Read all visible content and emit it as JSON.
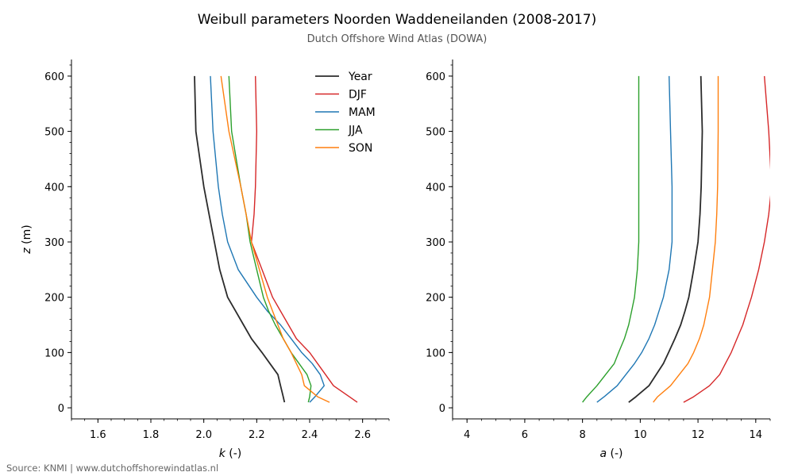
{
  "title": "Weibull parameters Noorden Waddeneilanden (2008-2017)",
  "subtitle": "Dutch Offshore Wind Atlas (DOWA)",
  "source": "Source: KNMI | www.dutchoffshorewindatlas.nl",
  "colors": {
    "Year": "#2b2b2b",
    "DJF": "#d62728",
    "MAM": "#1f77b4",
    "JJA": "#2ca02c",
    "SON": "#ff7f0e"
  },
  "chart_data": [
    {
      "type": "line",
      "xlabel_var": "k",
      "xlabel_unit": " (-)",
      "ylabel_var": "z",
      "ylabel_unit": " (m)",
      "xlim": [
        1.5,
        2.7
      ],
      "ylim": [
        -20,
        630
      ],
      "xticks": [
        1.6,
        1.8,
        2.0,
        2.2,
        2.4,
        2.6
      ],
      "xtick_labels": [
        "1.6",
        "1.8",
        "2.0",
        "2.2",
        "2.4",
        "2.6"
      ],
      "yticks": [
        0,
        100,
        200,
        300,
        400,
        500,
        600
      ],
      "ytick_labels": [
        "0",
        "100",
        "200",
        "300",
        "400",
        "500",
        "600"
      ],
      "legend_position": "top-right",
      "series": [
        {
          "name": "Year",
          "points": [
            [
              2.305,
              10
            ],
            [
              2.3,
              20
            ],
            [
              2.29,
              40
            ],
            [
              2.28,
              60
            ],
            [
              2.25,
              80
            ],
            [
              2.22,
              100
            ],
            [
              2.18,
              125
            ],
            [
              2.15,
              150
            ],
            [
              2.12,
              175
            ],
            [
              2.09,
              200
            ],
            [
              2.06,
              250
            ],
            [
              2.04,
              300
            ],
            [
              2.02,
              350
            ],
            [
              2.0,
              400
            ],
            [
              1.97,
              500
            ],
            [
              1.965,
              600
            ]
          ]
        },
        {
          "name": "DJF",
          "points": [
            [
              2.58,
              10
            ],
            [
              2.55,
              20
            ],
            [
              2.49,
              40
            ],
            [
              2.46,
              60
            ],
            [
              2.43,
              80
            ],
            [
              2.4,
              100
            ],
            [
              2.35,
              125
            ],
            [
              2.32,
              150
            ],
            [
              2.29,
              175
            ],
            [
              2.26,
              200
            ],
            [
              2.22,
              250
            ],
            [
              2.18,
              300
            ],
            [
              2.19,
              350
            ],
            [
              2.195,
              400
            ],
            [
              2.2,
              500
            ],
            [
              2.195,
              600
            ]
          ]
        },
        {
          "name": "MAM",
          "points": [
            [
              2.4,
              10
            ],
            [
              2.42,
              20
            ],
            [
              2.455,
              40
            ],
            [
              2.44,
              60
            ],
            [
              2.41,
              80
            ],
            [
              2.37,
              100
            ],
            [
              2.33,
              125
            ],
            [
              2.29,
              150
            ],
            [
              2.24,
              175
            ],
            [
              2.2,
              200
            ],
            [
              2.13,
              250
            ],
            [
              2.09,
              300
            ],
            [
              2.07,
              350
            ],
            [
              2.055,
              400
            ],
            [
              2.035,
              500
            ],
            [
              2.025,
              600
            ]
          ]
        },
        {
          "name": "JJA",
          "points": [
            [
              2.395,
              10
            ],
            [
              2.4,
              20
            ],
            [
              2.405,
              40
            ],
            [
              2.39,
              60
            ],
            [
              2.36,
              80
            ],
            [
              2.33,
              100
            ],
            [
              2.3,
              125
            ],
            [
              2.27,
              150
            ],
            [
              2.245,
              175
            ],
            [
              2.225,
              200
            ],
            [
              2.2,
              250
            ],
            [
              2.175,
              300
            ],
            [
              2.16,
              350
            ],
            [
              2.14,
              400
            ],
            [
              2.105,
              500
            ],
            [
              2.095,
              600
            ]
          ]
        },
        {
          "name": "SON",
          "points": [
            [
              2.475,
              10
            ],
            [
              2.43,
              20
            ],
            [
              2.38,
              40
            ],
            [
              2.37,
              60
            ],
            [
              2.35,
              80
            ],
            [
              2.33,
              100
            ],
            [
              2.3,
              125
            ],
            [
              2.28,
              150
            ],
            [
              2.26,
              175
            ],
            [
              2.24,
              200
            ],
            [
              2.21,
              250
            ],
            [
              2.18,
              300
            ],
            [
              2.16,
              350
            ],
            [
              2.14,
              400
            ],
            [
              2.095,
              500
            ],
            [
              2.065,
              600
            ]
          ]
        }
      ]
    },
    {
      "type": "line",
      "xlabel_var": "a",
      "xlabel_unit": " (-)",
      "ylabel_var": "",
      "ylabel_unit": "",
      "xlim": [
        3.5,
        14.5
      ],
      "ylim": [
        -20,
        630
      ],
      "xticks": [
        4,
        6,
        8,
        10,
        12,
        14
      ],
      "xtick_labels": [
        "4",
        "6",
        "8",
        "10",
        "12",
        "14"
      ],
      "yticks": [
        0,
        100,
        200,
        300,
        400,
        500,
        600
      ],
      "ytick_labels": [
        "0",
        "100",
        "200",
        "300",
        "400",
        "500",
        "600"
      ],
      "series": [
        {
          "name": "Year",
          "points": [
            [
              9.6,
              10
            ],
            [
              9.85,
              20
            ],
            [
              10.3,
              40
            ],
            [
              10.55,
              60
            ],
            [
              10.8,
              80
            ],
            [
              10.98,
              100
            ],
            [
              11.2,
              125
            ],
            [
              11.4,
              150
            ],
            [
              11.55,
              175
            ],
            [
              11.68,
              200
            ],
            [
              11.85,
              250
            ],
            [
              12.0,
              300
            ],
            [
              12.07,
              350
            ],
            [
              12.11,
              400
            ],
            [
              12.15,
              500
            ],
            [
              12.1,
              600
            ]
          ]
        },
        {
          "name": "DJF",
          "points": [
            [
              11.5,
              10
            ],
            [
              11.85,
              20
            ],
            [
              12.4,
              40
            ],
            [
              12.75,
              60
            ],
            [
              12.95,
              80
            ],
            [
              13.15,
              100
            ],
            [
              13.35,
              125
            ],
            [
              13.55,
              150
            ],
            [
              13.7,
              175
            ],
            [
              13.85,
              200
            ],
            [
              14.1,
              250
            ],
            [
              14.3,
              300
            ],
            [
              14.45,
              350
            ],
            [
              14.55,
              400
            ],
            [
              14.45,
              500
            ],
            [
              14.3,
              600
            ]
          ]
        },
        {
          "name": "MAM",
          "points": [
            [
              8.5,
              10
            ],
            [
              8.75,
              20
            ],
            [
              9.2,
              40
            ],
            [
              9.5,
              60
            ],
            [
              9.8,
              80
            ],
            [
              10.05,
              100
            ],
            [
              10.3,
              125
            ],
            [
              10.5,
              150
            ],
            [
              10.65,
              175
            ],
            [
              10.8,
              200
            ],
            [
              11.0,
              250
            ],
            [
              11.1,
              300
            ],
            [
              11.1,
              350
            ],
            [
              11.1,
              400
            ],
            [
              11.05,
              500
            ],
            [
              11.0,
              600
            ]
          ]
        },
        {
          "name": "JJA",
          "points": [
            [
              8.0,
              10
            ],
            [
              8.15,
              20
            ],
            [
              8.5,
              40
            ],
            [
              8.8,
              60
            ],
            [
              9.1,
              80
            ],
            [
              9.25,
              100
            ],
            [
              9.45,
              125
            ],
            [
              9.6,
              150
            ],
            [
              9.7,
              175
            ],
            [
              9.8,
              200
            ],
            [
              9.9,
              250
            ],
            [
              9.95,
              300
            ],
            [
              9.95,
              350
            ],
            [
              9.95,
              400
            ],
            [
              9.95,
              500
            ],
            [
              9.95,
              600
            ]
          ]
        },
        {
          "name": "SON",
          "points": [
            [
              10.45,
              10
            ],
            [
              10.6,
              20
            ],
            [
              11.05,
              40
            ],
            [
              11.35,
              60
            ],
            [
              11.65,
              80
            ],
            [
              11.85,
              100
            ],
            [
              12.05,
              125
            ],
            [
              12.2,
              150
            ],
            [
              12.3,
              175
            ],
            [
              12.4,
              200
            ],
            [
              12.5,
              250
            ],
            [
              12.6,
              300
            ],
            [
              12.65,
              350
            ],
            [
              12.68,
              400
            ],
            [
              12.7,
              500
            ],
            [
              12.7,
              600
            ]
          ]
        }
      ]
    }
  ]
}
